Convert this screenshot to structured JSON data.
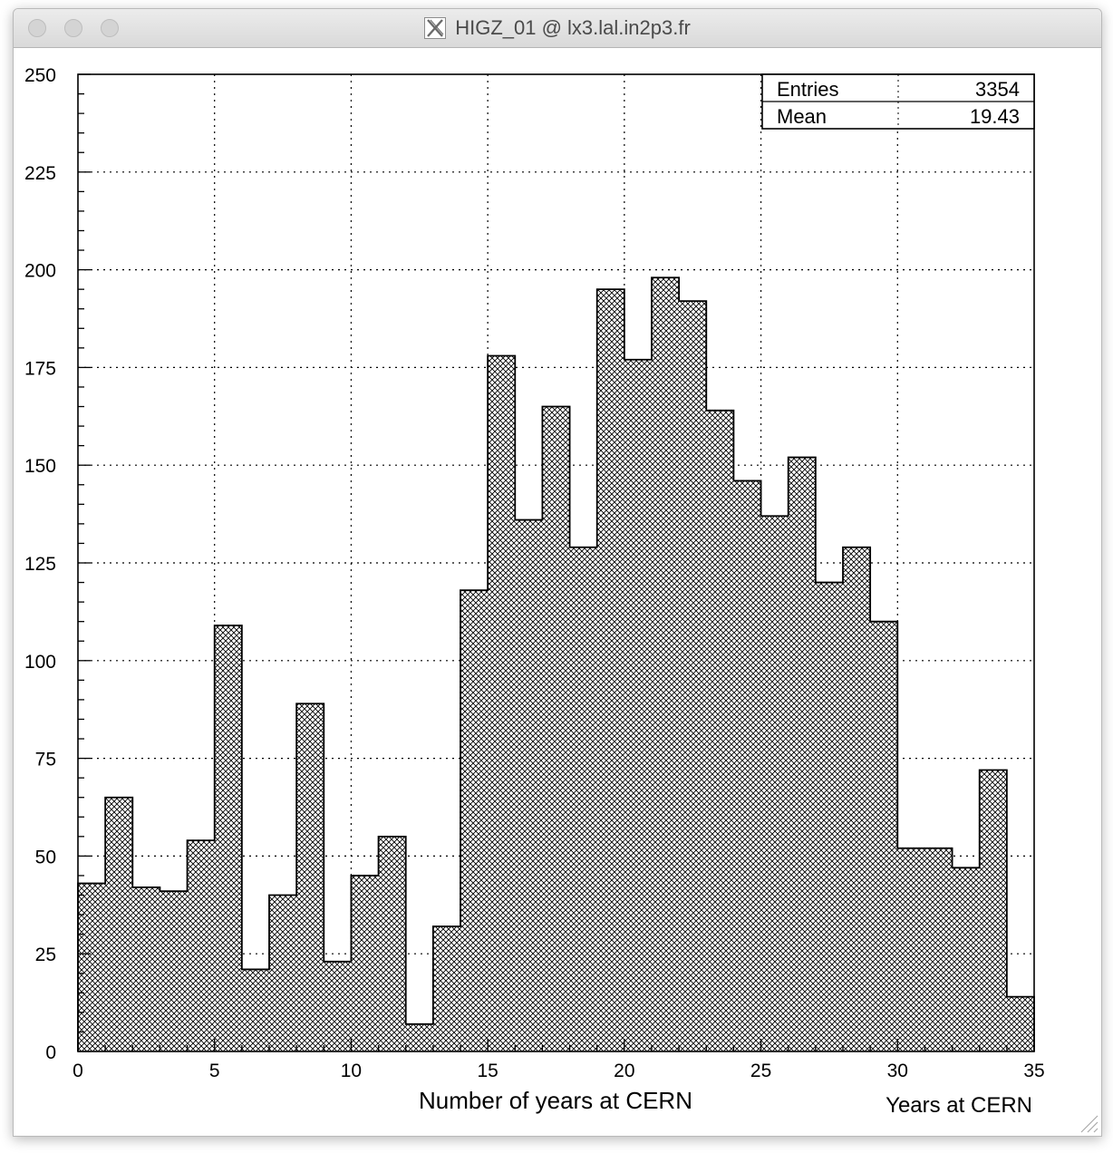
{
  "window": {
    "title": "HIGZ_01 @ lx3.lal.in2p3.fr",
    "buttons": [
      "close",
      "minimize",
      "zoom"
    ]
  },
  "stats_box": {
    "rows": [
      {
        "label": "Entries",
        "value": "3354"
      },
      {
        "label": "Mean",
        "value": "19.43"
      }
    ]
  },
  "chart_data": {
    "type": "bar",
    "title": "",
    "xlabel": "Number of years at CERN",
    "ylabel": "",
    "caption": "Years at CERN",
    "xlim": [
      0,
      35
    ],
    "ylim": [
      0,
      250
    ],
    "bin_width": 1,
    "grid": true,
    "fill": "crosshatch",
    "xticks": [
      0,
      5,
      10,
      15,
      20,
      25,
      30,
      35
    ],
    "yticks": [
      0,
      25,
      50,
      75,
      100,
      125,
      150,
      175,
      200,
      225,
      250
    ],
    "bin_edges_start": [
      0,
      1,
      2,
      3,
      4,
      5,
      6,
      7,
      8,
      9,
      10,
      11,
      12,
      13,
      14,
      15,
      16,
      17,
      18,
      19,
      20,
      21,
      22,
      23,
      24,
      25,
      26,
      27,
      28,
      29,
      30,
      31,
      32,
      33,
      34
    ],
    "values": [
      43,
      65,
      42,
      41,
      54,
      109,
      21,
      40,
      89,
      23,
      45,
      55,
      7,
      32,
      118,
      178,
      136,
      165,
      129,
      195,
      177,
      198,
      192,
      164,
      146,
      137,
      152,
      120,
      129,
      110,
      52,
      52,
      47,
      72,
      14
    ]
  },
  "colors": {
    "axis": "#000000",
    "hatch": "#000000",
    "background": "#ffffff"
  }
}
